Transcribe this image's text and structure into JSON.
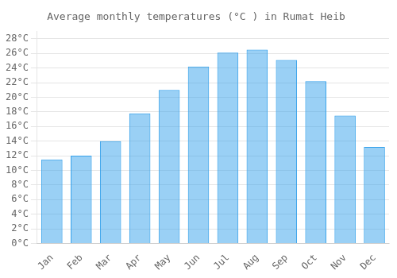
{
  "chart_data": {
    "type": "bar",
    "title": "Average monthly temperatures (°C ) in Rumat Heib",
    "categories": [
      "Jan",
      "Feb",
      "Mar",
      "Apr",
      "May",
      "Jun",
      "Jul",
      "Aug",
      "Sep",
      "Oct",
      "Nov",
      "Dec"
    ],
    "values": [
      11.5,
      12.0,
      14.0,
      17.8,
      21.0,
      24.2,
      26.1,
      26.5,
      25.1,
      22.2,
      17.5,
      13.2
    ],
    "ylim": [
      0,
      29
    ],
    "yticks": [
      {
        "value": 0,
        "label": "0°C"
      },
      {
        "value": 2,
        "label": "2°C"
      },
      {
        "value": 4,
        "label": "4°C"
      },
      {
        "value": 6,
        "label": "6°C"
      },
      {
        "value": 8,
        "label": "8°C"
      },
      {
        "value": 10,
        "label": "10°C"
      },
      {
        "value": 12,
        "label": "12°C"
      },
      {
        "value": 14,
        "label": "14°C"
      },
      {
        "value": 16,
        "label": "16°C"
      },
      {
        "value": 18,
        "label": "18°C"
      },
      {
        "value": 20,
        "label": "20°C"
      },
      {
        "value": 22,
        "label": "22°C"
      },
      {
        "value": 24,
        "label": "24°C"
      },
      {
        "value": 26,
        "label": "26°C"
      },
      {
        "value": 28,
        "label": "28°C"
      }
    ],
    "grid": true
  }
}
